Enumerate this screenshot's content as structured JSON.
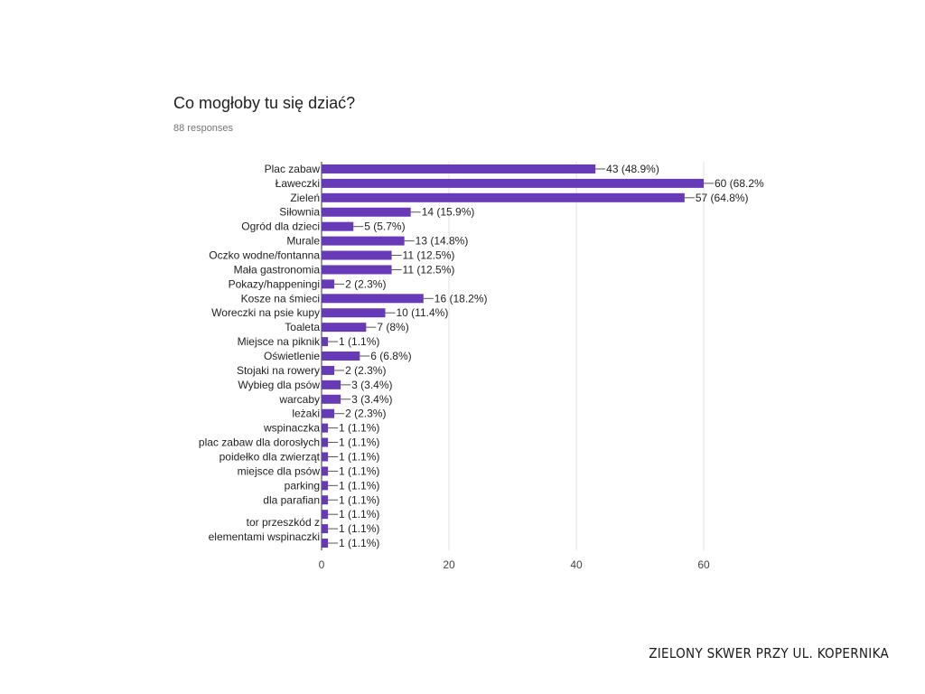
{
  "chart_data": {
    "type": "bar",
    "orientation": "horizontal",
    "title": "Co mogłoby tu się dziać?",
    "subtitle": "88 responses",
    "categories": [
      "Plac zabaw",
      "Ławeczki",
      "Zieleń",
      "Siłownia",
      "Ogród dla dzieci",
      "Murale",
      "Oczko wodne/fontanna",
      "Mała gastronomia",
      "Pokazy/happeningi",
      "Kosze na śmieci",
      "Woreczki na psie kupy",
      "Toaleta",
      "Miejsce na piknik",
      "Oświetlenie",
      "Stojaki na rowery",
      "Wybieg dla psów",
      "warcaby",
      "leżaki",
      "wspinaczka",
      "plac zabaw dla dorosłych",
      "poidełko dla zwierząt",
      "miejsce dla psów",
      "parking",
      "dla parafian",
      "",
      "tor przeszkód z elementami wspinaczki",
      ""
    ],
    "values": [
      43,
      60,
      57,
      14,
      5,
      13,
      11,
      11,
      2,
      16,
      10,
      7,
      1,
      6,
      2,
      3,
      3,
      2,
      1,
      1,
      1,
      1,
      1,
      1,
      1,
      1,
      1
    ],
    "value_labels": [
      "43 (48.9%)",
      "60 (68.2%",
      "57 (64.8%)",
      "14 (15.9%)",
      "5 (5.7%)",
      "13 (14.8%)",
      "11 (12.5%)",
      "11 (12.5%)",
      "2 (2.3%)",
      "16 (18.2%)",
      "10 (11.4%)",
      "7 (8%)",
      "1 (1.1%)",
      "6 (6.8%)",
      "2 (2.3%)",
      "3 (3.4%)",
      "3 (3.4%)",
      "2 (2.3%)",
      "1 (1.1%)",
      "1 (1.1%)",
      "1 (1.1%)",
      "1 (1.1%)",
      "1 (1.1%)",
      "1 (1.1%)",
      "1 (1.1%)",
      "1 (1.1%)",
      "1 (1.1%)"
    ],
    "xlim": [
      0,
      60
    ],
    "xticks": [
      0,
      20,
      40,
      60
    ],
    "grid": true,
    "legend": "none",
    "bar_color": "#673ab7"
  },
  "footer": "ZIELONY SKWER PRZY UL. KOPERNIKA"
}
